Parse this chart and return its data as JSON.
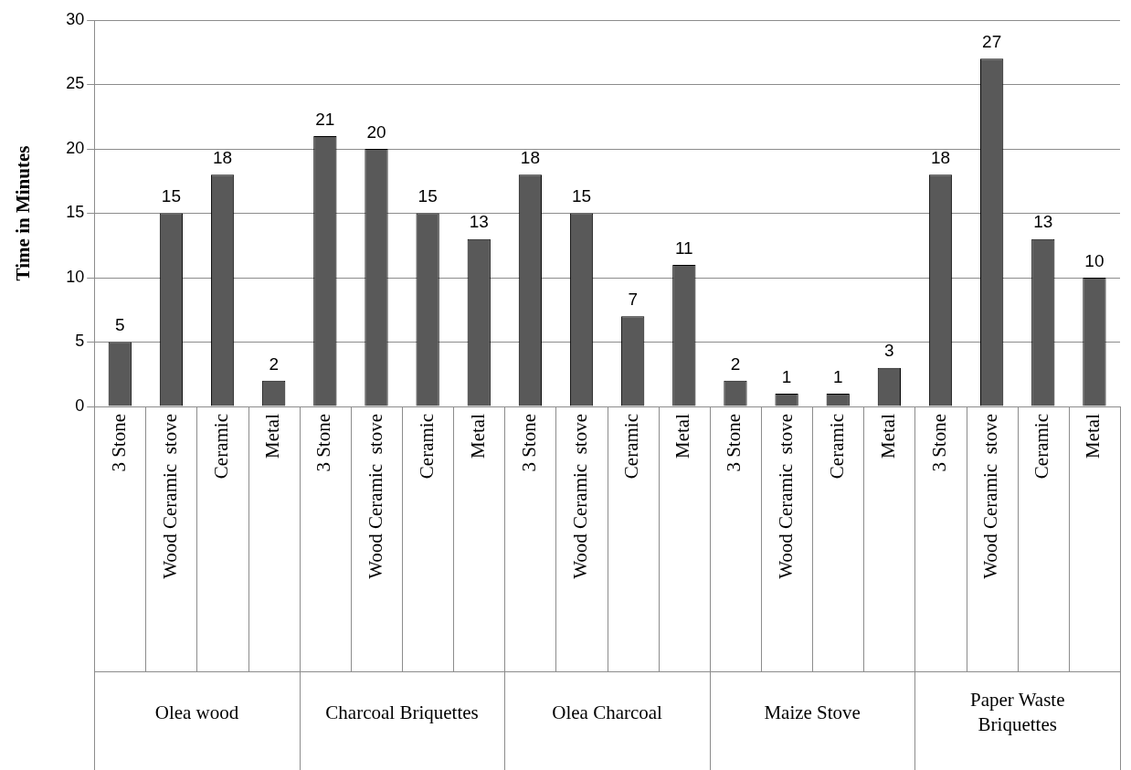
{
  "chart_data": {
    "type": "bar",
    "ylabel": "Time in Minutes",
    "categories": [
      "3 Stone",
      "Wood Ceramic  stove",
      "Ceramic",
      "Metal",
      "3 Stone",
      "Wood Ceramic  stove",
      "Ceramic",
      "Metal",
      "3 Stone",
      "Wood Ceramic  stove",
      "Ceramic",
      "Metal",
      "3 Stone",
      "Wood Ceramic  stove",
      "Ceramic",
      "Metal",
      "3 Stone",
      "Wood Ceramic  stove",
      "Ceramic",
      "Metal"
    ],
    "values": [
      5,
      15,
      18,
      2,
      21,
      20,
      15,
      13,
      18,
      15,
      7,
      11,
      2,
      1,
      1,
      3,
      18,
      27,
      13,
      10
    ],
    "color": "#595959",
    "annotations": [
      "Olea wood",
      "Charcoal Briquettes",
      "Olea Charcoal",
      "Maize Stove",
      "Paper Waste Briquettes"
    ],
    "ylim": [
      0,
      30
    ],
    "yticks": [
      0,
      5,
      10,
      15,
      20,
      25,
      30
    ],
    "grid": "y",
    "data_labels": true
  }
}
